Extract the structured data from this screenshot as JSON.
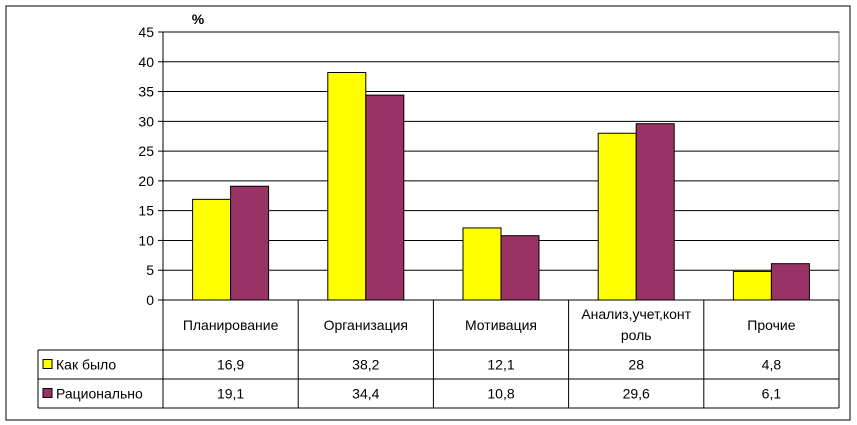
{
  "chart_data": {
    "type": "bar",
    "ylabel": "%",
    "ylim": [
      0,
      45
    ],
    "ytick_step": 5,
    "grid": true,
    "categories": [
      "Планирование",
      "Организация",
      "Мотивация",
      "Анализ,учет,конт роль",
      "Прочие"
    ],
    "category_lines": [
      [
        "Планирование"
      ],
      [
        "Организация"
      ],
      [
        "Мотивация"
      ],
      [
        "Анализ,учет,конт",
        "роль"
      ],
      [
        "Прочие"
      ]
    ],
    "series": [
      {
        "name": "Как было",
        "color": "#ffff00",
        "values": [
          16.9,
          38.2,
          12.1,
          28,
          4.8
        ],
        "labels": [
          "16,9",
          "38,2",
          "12,1",
          "28",
          "4,8"
        ]
      },
      {
        "name": "Рационально",
        "color": "#993366",
        "values": [
          19.1,
          34.4,
          10.8,
          29.6,
          6.1
        ],
        "labels": [
          "19,1",
          "34,4",
          "10,8",
          "29,6",
          "6,1"
        ]
      }
    ],
    "legend": "data-table"
  }
}
